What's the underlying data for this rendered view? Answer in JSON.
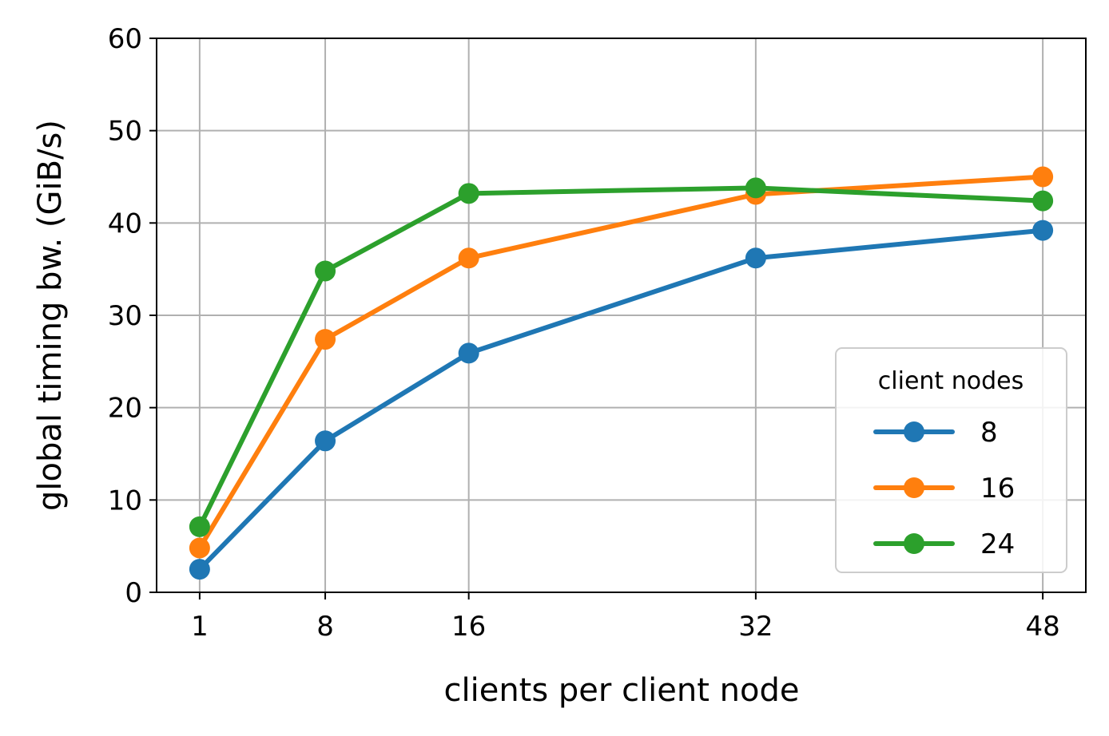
{
  "chart_data": {
    "type": "line",
    "xlabel": "clients per client node",
    "ylabel": "global timing bw. (GiB/s)",
    "x": [
      1,
      8,
      16,
      32,
      48
    ],
    "xticks": [
      "1",
      "8",
      "16",
      "32",
      "48"
    ],
    "yticks": [
      "0",
      "10",
      "20",
      "30",
      "40",
      "50",
      "60"
    ],
    "xlim": [
      -1.4,
      50.4
    ],
    "ylim": [
      0,
      60
    ],
    "grid": true,
    "legend": {
      "title": "client nodes",
      "placement": "lower-right"
    },
    "series": [
      {
        "name": "8",
        "color": "#1f77b4",
        "values": [
          2.5,
          16.4,
          25.9,
          36.2,
          39.2
        ]
      },
      {
        "name": "16",
        "color": "#ff7f0e",
        "values": [
          4.8,
          27.4,
          36.2,
          43.1,
          45.0
        ]
      },
      {
        "name": "24",
        "color": "#2ca02c",
        "values": [
          7.1,
          34.8,
          43.2,
          43.8,
          42.4
        ]
      }
    ]
  }
}
